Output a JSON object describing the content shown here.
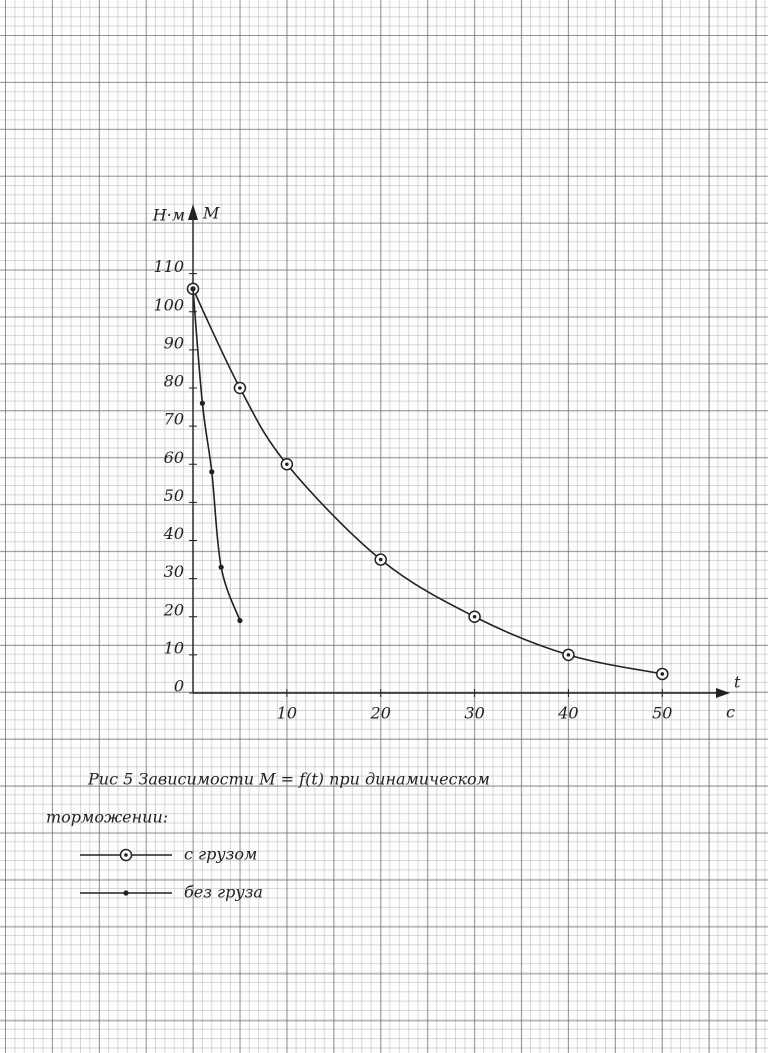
{
  "chart_data": {
    "type": "line",
    "title": "Рис 5 Зависимости M = f(t) при динамическом",
    "subtitle": "торможении:",
    "y_label": "М",
    "y_unit": "Н·м",
    "x_label": "t",
    "x_unit": "с",
    "xlim": [
      0,
      57
    ],
    "ylim": [
      0,
      128
    ],
    "xticks": [
      10,
      20,
      30,
      40,
      50
    ],
    "yticks": [
      0,
      10,
      20,
      30,
      40,
      50,
      60,
      70,
      80,
      90,
      100,
      110
    ],
    "series": [
      {
        "name": "с грузом",
        "color": "#222222",
        "marker": "ring",
        "x": [
          0,
          5,
          10,
          20,
          30,
          40,
          50
        ],
        "values": [
          106,
          80,
          60,
          35,
          20,
          10,
          5
        ]
      },
      {
        "name": "без груза",
        "color": "#222222",
        "marker": "dot",
        "x": [
          0,
          1,
          2,
          3,
          5
        ],
        "values": [
          106,
          76,
          58,
          33,
          19
        ]
      }
    ]
  }
}
